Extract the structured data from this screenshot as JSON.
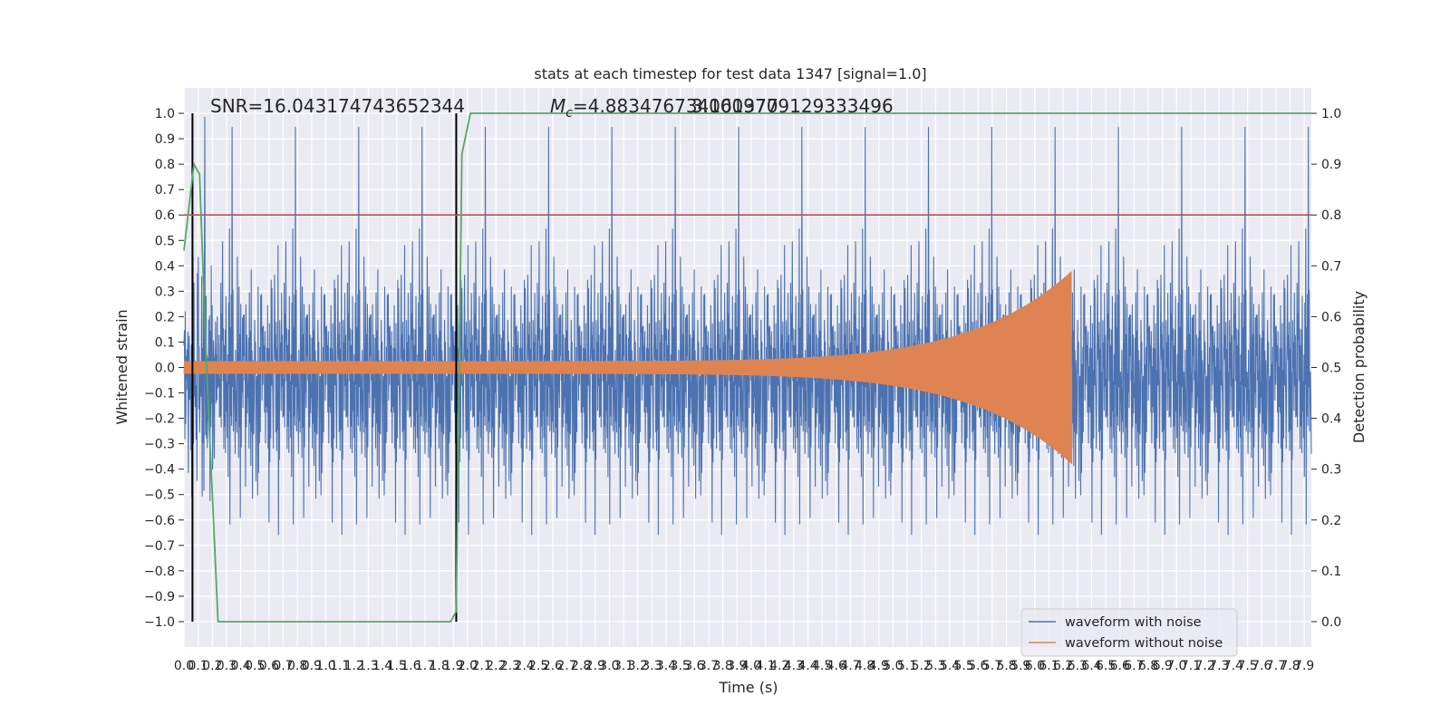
{
  "chart_data": {
    "type": "line",
    "title": "stats at each timestep for test data 1347 [signal=1.0]",
    "xlabel": "Time (s)",
    "ylabel": "Whitened strain",
    "y2label": "Detection probability",
    "xlim": [
      0.0,
      7.95
    ],
    "ylim": [
      -1.1,
      1.1
    ],
    "y2lim": [
      -0.05,
      1.05
    ],
    "grid": true,
    "x_ticks": [
      "0.0",
      "0.1",
      "0.2",
      "0.3",
      "0.4",
      "0.5",
      "0.6",
      "0.7",
      "0.8",
      "0.9",
      "1.0",
      "1.1",
      "1.2",
      "1.3",
      "1.4",
      "1.5",
      "1.6",
      "1.7",
      "1.8",
      "1.9",
      "2.0",
      "2.1",
      "2.2",
      "2.3",
      "2.4",
      "2.5",
      "2.6",
      "2.7",
      "2.8",
      "2.9",
      "3.0",
      "3.1",
      "3.2",
      "3.3",
      "3.4",
      "3.5",
      "3.6",
      "3.7",
      "3.8",
      "3.9",
      "4.0",
      "4.1",
      "4.2",
      "4.3",
      "4.4",
      "4.5",
      "4.6",
      "4.7",
      "4.8",
      "4.9",
      "5.0",
      "5.1",
      "5.2",
      "5.3",
      "5.4",
      "5.5",
      "5.6",
      "5.7",
      "5.8",
      "5.9",
      "6.0",
      "6.1",
      "6.2",
      "6.3",
      "6.4",
      "6.5",
      "6.6",
      "6.7",
      "6.8",
      "6.9",
      "7.0",
      "7.1",
      "7.2",
      "7.3",
      "7.4",
      "7.5",
      "7.6",
      "7.7",
      "7.8",
      "7.9"
    ],
    "y_ticks": [
      "1.0",
      "0.9",
      "0.8",
      "0.7",
      "0.6",
      "0.5",
      "0.4",
      "0.3",
      "0.2",
      "0.1",
      "0.0",
      "−0.1",
      "−0.2",
      "−0.3",
      "−0.4",
      "−0.5",
      "−0.6",
      "−0.7",
      "−0.8",
      "−0.9",
      "−1.0"
    ],
    "y2_ticks": [
      "1.0",
      "0.9",
      "0.8",
      "0.7",
      "0.6",
      "0.5",
      "0.4",
      "0.3",
      "0.2",
      "0.1",
      "0.0"
    ],
    "annotations": {
      "snr": "SNR=16.043174743652344",
      "mc_symbol": "M",
      "mc_sub": "c",
      "mc_value": "=4.883476734161377",
      "overlap_value": "3.0009709129333496"
    },
    "threshold": 0.8,
    "vertical_markers": [
      0.06,
      1.92
    ],
    "chirp": {
      "start": 0.0,
      "end": 6.26,
      "amp_start": 0.025,
      "amp_end": 0.38
    },
    "noise": {
      "typical_amplitude": 0.45,
      "max_amplitude": 1.0
    },
    "detection_probability": {
      "x": [
        0.0,
        0.07,
        0.11,
        0.16,
        0.24,
        0.3,
        0.5,
        1.0,
        1.4,
        1.8,
        1.88,
        1.92,
        1.96,
        2.02,
        2.5,
        4.0,
        6.0,
        7.95
      ],
      "y": [
        0.73,
        0.9,
        0.88,
        0.5,
        0.0,
        0.0,
        0.0,
        0.0,
        0.0,
        0.0,
        0.0,
        0.02,
        0.92,
        1.0,
        1.0,
        1.0,
        1.0,
        1.0
      ]
    },
    "legend": {
      "position": "lower-right",
      "entries": [
        "waveform with noise",
        "waveform without noise"
      ]
    },
    "colors": {
      "noise": "#4c72b0",
      "clean": "#dd8452",
      "probability": "#55a868",
      "threshold": "#c44e52",
      "marker": "#000000",
      "plot_bg": "#eaeaf2",
      "grid": "#ffffff",
      "text": "#262626"
    }
  }
}
